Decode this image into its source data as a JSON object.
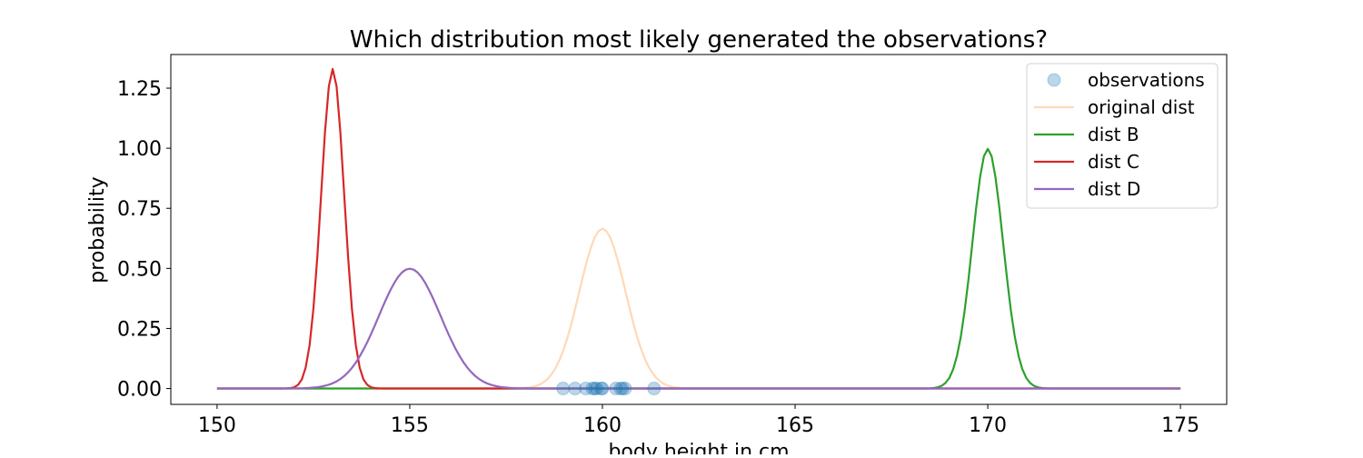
{
  "chart_data": {
    "type": "line",
    "title": "Which distribution most likely generated the observations?",
    "xlabel": "body height in cm",
    "ylabel": "probability",
    "xlim": [
      148.8,
      176.2
    ],
    "ylim": [
      -0.066,
      1.39
    ],
    "xticks": [
      150,
      155,
      160,
      165,
      170,
      175
    ],
    "xtick_labels": [
      "150",
      "155",
      "160",
      "165",
      "170",
      "175"
    ],
    "yticks": [
      0,
      0.25,
      0.5,
      0.75,
      1.0,
      1.25
    ],
    "ytick_labels": [
      "0.00",
      "0.25",
      "0.50",
      "0.75",
      "1.00",
      "1.25"
    ],
    "grid": false,
    "legend_placement": "top-right",
    "x_range": [
      150,
      175
    ],
    "x_step": 0.1,
    "observations": {
      "name": "observations",
      "color": "#1f77b4",
      "alpha": 0.3,
      "x": [
        158.98,
        159.29,
        159.57,
        159.74,
        159.8,
        159.85,
        159.97,
        160.0,
        160.35,
        160.47,
        160.52,
        160.59,
        161.34
      ],
      "y": [
        0,
        0,
        0,
        0,
        0,
        0,
        0,
        0,
        0,
        0,
        0,
        0,
        0
      ]
    },
    "series": [
      {
        "name": "original dist",
        "color": "#ff7f0e",
        "alpha": 0.3,
        "distribution": "normal",
        "mean": 160,
        "std": 0.6
      },
      {
        "name": "dist B",
        "color": "#2ca02c",
        "alpha": 1,
        "distribution": "normal",
        "mean": 170,
        "std": 0.4
      },
      {
        "name": "dist C",
        "color": "#d62728",
        "alpha": 1,
        "distribution": "normal",
        "mean": 153,
        "std": 0.3
      },
      {
        "name": "dist D",
        "color": "#9467bd",
        "alpha": 1,
        "distribution": "normal",
        "mean": 155,
        "std": 0.8
      }
    ]
  }
}
